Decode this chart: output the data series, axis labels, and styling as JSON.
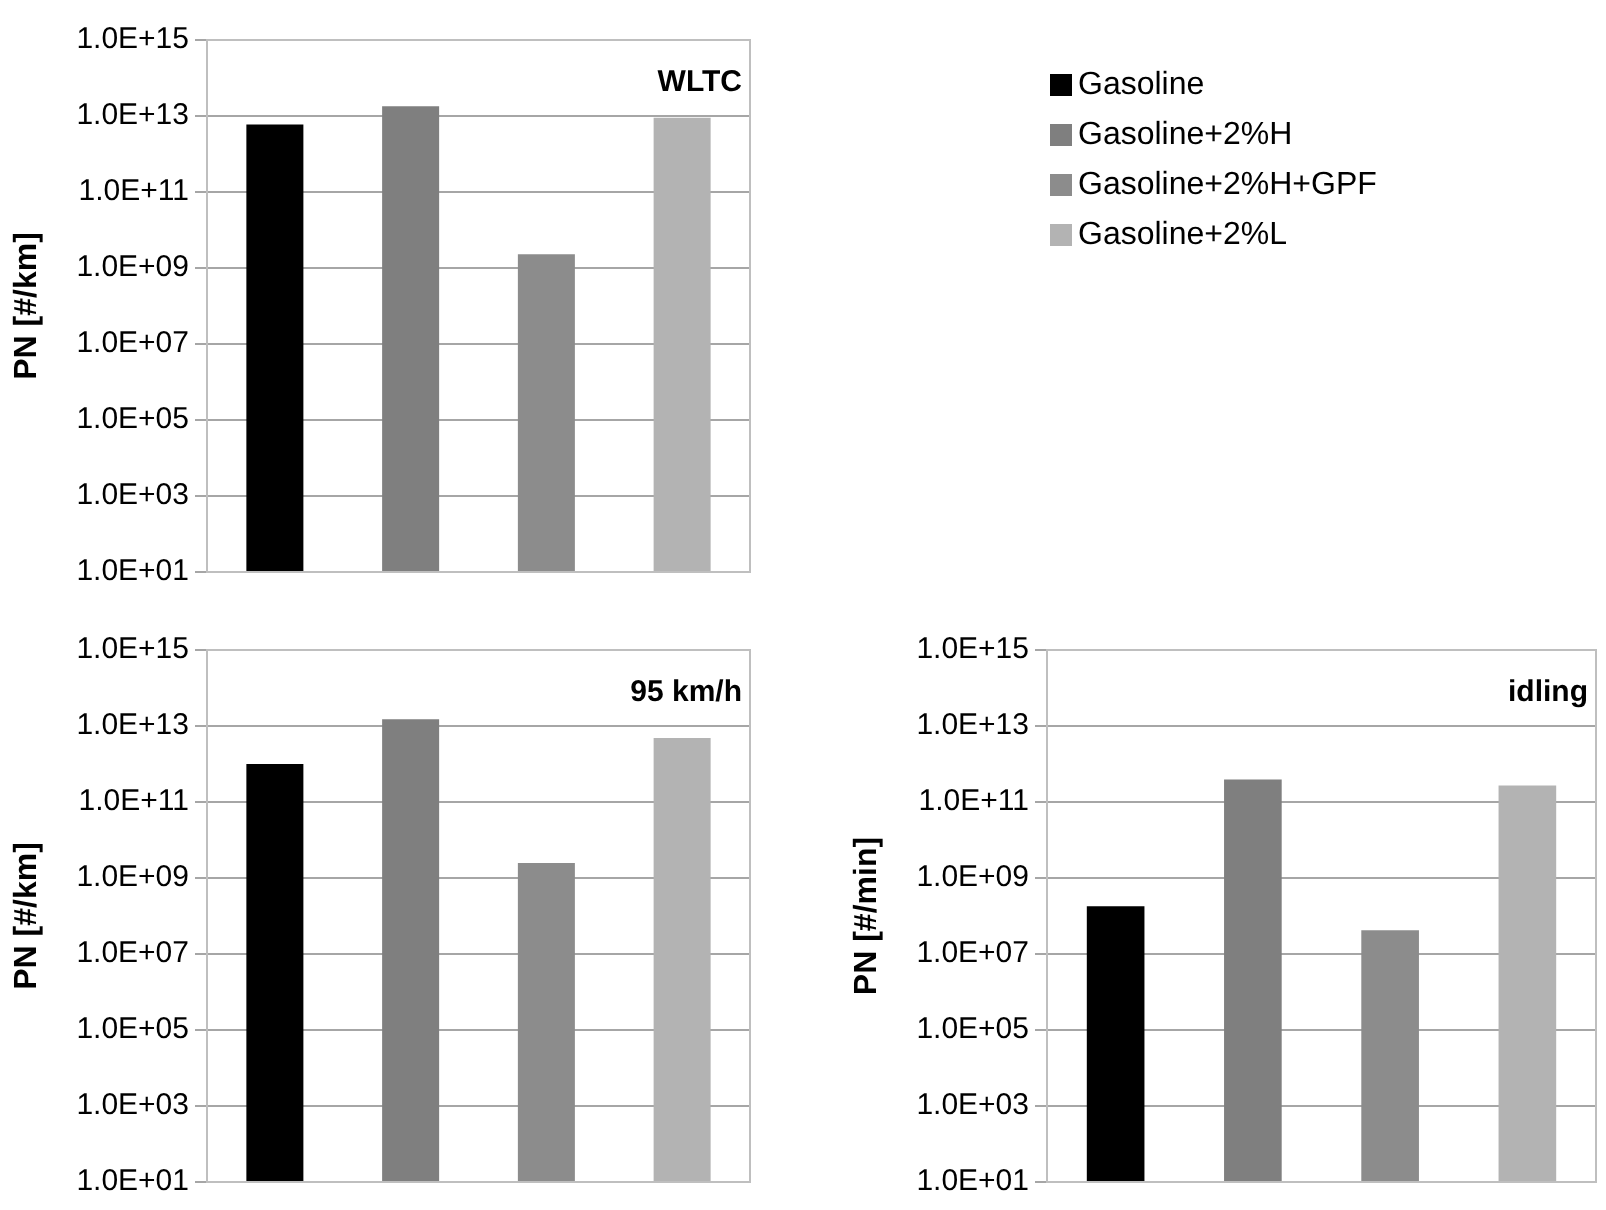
{
  "chart_data": [
    {
      "type": "bar",
      "title": "WLTC",
      "ylabel": "PN [#/km]",
      "categories": [
        null
      ],
      "log": "y",
      "ylim": [
        10,
        1000000000000000.0
      ],
      "yticks": [
        {
          "value": 10,
          "label": "1.0E+01"
        },
        {
          "value": 1000,
          "label": "1.0E+03"
        },
        {
          "value": 100000,
          "label": "1.0E+05"
        },
        {
          "value": 10000000,
          "label": "1.0E+07"
        },
        {
          "value": 1000000000,
          "label": "1.0E+09"
        },
        {
          "value": 100000000000,
          "label": "1.0E+11"
        },
        {
          "value": 10000000000000,
          "label": "1.0E+13"
        },
        {
          "value": 1000000000000000,
          "label": "1.0E+15"
        }
      ],
      "grid": "y",
      "tick_labels": "y",
      "legend": "right",
      "series": [
        {
          "name": "Gasoline",
          "color": "#000000",
          "values": [
            6000000000000.0
          ]
        },
        {
          "name": "Gasoline+2%H",
          "color": "#7f7f7f",
          "values": [
            18000000000000.0
          ]
        },
        {
          "name": "Gasoline+2%H+GPF",
          "color": "#8c8c8c",
          "values": [
            2300000000.0
          ]
        },
        {
          "name": "Gasoline+2%L",
          "color": "#b3b3b3",
          "values": [
            9000000000000.0
          ]
        }
      ]
    },
    {
      "type": "bar",
      "title": "95 km/h",
      "ylabel": "PN [#/km]",
      "categories": [
        null
      ],
      "log": "y",
      "ylim": [
        10,
        1000000000000000.0
      ],
      "yticks": [
        {
          "value": 10,
          "label": "1.0E+01"
        },
        {
          "value": 1000,
          "label": "1.0E+03"
        },
        {
          "value": 100000,
          "label": "1.0E+05"
        },
        {
          "value": 10000000,
          "label": "1.0E+07"
        },
        {
          "value": 1000000000,
          "label": "1.0E+09"
        },
        {
          "value": 100000000000,
          "label": "1.0E+11"
        },
        {
          "value": 10000000000000,
          "label": "1.0E+13"
        },
        {
          "value": 1000000000000000,
          "label": "1.0E+15"
        }
      ],
      "grid": "y",
      "tick_labels": "y",
      "series": [
        {
          "color": "#000000",
          "values": [
            1000000000000.0
          ]
        },
        {
          "color": "#7f7f7f",
          "values": [
            15000000000000.0
          ]
        },
        {
          "color": "#8c8c8c",
          "values": [
            2500000000.0
          ]
        },
        {
          "color": "#b3b3b3",
          "values": [
            4800000000000.0
          ]
        }
      ]
    },
    {
      "type": "bar",
      "title": "idling",
      "ylabel": "PN [#/min]",
      "categories": [
        null
      ],
      "log": "y",
      "ylim": [
        10,
        1000000000000000.0
      ],
      "yticks": [
        {
          "value": 10,
          "label": "1.0E+01"
        },
        {
          "value": 1000,
          "label": "1.0E+03"
        },
        {
          "value": 100000,
          "label": "1.0E+05"
        },
        {
          "value": 10000000,
          "label": "1.0E+07"
        },
        {
          "value": 1000000000,
          "label": "1.0E+09"
        },
        {
          "value": 100000000000,
          "label": "1.0E+11"
        },
        {
          "value": 10000000000000,
          "label": "1.0E+13"
        },
        {
          "value": 1000000000000000,
          "label": "1.0E+15"
        }
      ],
      "grid": "y",
      "tick_labels": "y",
      "series": [
        {
          "color": "#000000",
          "values": [
            180000000.0
          ]
        },
        {
          "color": "#7f7f7f",
          "values": [
            390000000000.0
          ]
        },
        {
          "color": "#8c8c8c",
          "values": [
            42000000.0
          ]
        },
        {
          "color": "#b3b3b3",
          "values": [
            270000000000.0
          ]
        }
      ]
    }
  ]
}
